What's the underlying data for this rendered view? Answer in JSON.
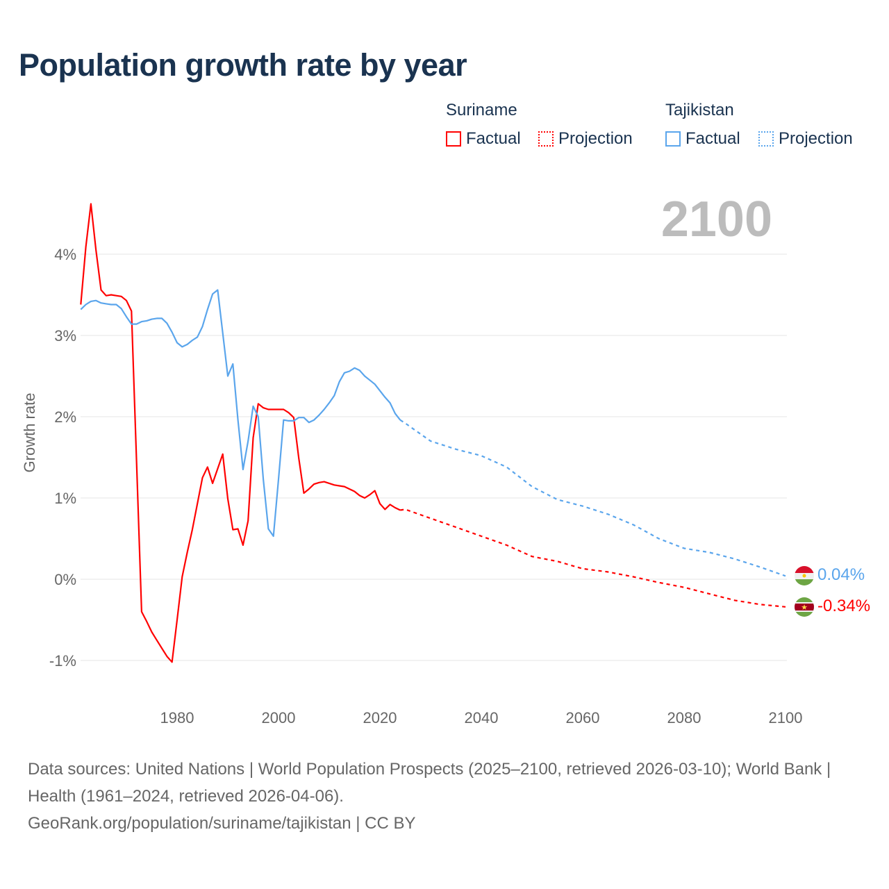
{
  "title": "Population growth rate by year",
  "current_year": "2100",
  "legend": {
    "groups": [
      {
        "country": "Suriname",
        "factual": "Factual",
        "projection": "Projection",
        "color": "#ff0000"
      },
      {
        "country": "Tajikistan",
        "factual": "Factual",
        "projection": "Projection",
        "color": "#5aa5ec"
      }
    ]
  },
  "end_labels": {
    "tajikistan": "0.04%",
    "suriname": "-0.34%"
  },
  "footer": {
    "sources": "Data sources: United Nations | World Population Prospects (2025–2100, retrieved 2026-03-10); World Bank | Health (1961–2024, retrieved 2026-04-06).",
    "credit": "GeoRank.org/population/suriname/tajikistan | CC BY"
  },
  "chart_data": {
    "type": "line",
    "title": "Population growth rate by year",
    "xlabel": "",
    "ylabel": "Growth rate",
    "xlim": [
      1961,
      2100
    ],
    "ylim": [
      -1.5,
      4.6
    ],
    "x_ticks": [
      1980,
      2000,
      2020,
      2040,
      2060,
      2080,
      2100
    ],
    "x_tick_labels": [
      "1980",
      "2000",
      "2020",
      "2040",
      "2060",
      "2080",
      "2100"
    ],
    "y_ticks": [
      -1,
      0,
      1,
      2,
      3,
      4
    ],
    "y_tick_labels": [
      "-1%",
      "0%",
      "1%",
      "2%",
      "3%",
      "4%"
    ],
    "grid": true,
    "legend_position": "top-right",
    "series": [
      {
        "name": "Suriname Factual",
        "color": "#ff0000",
        "style": "solid",
        "x": [
          1961,
          1962,
          1963,
          1964,
          1965,
          1966,
          1967,
          1968,
          1969,
          1970,
          1971,
          1972,
          1973,
          1974,
          1975,
          1976,
          1977,
          1978,
          1979,
          1980,
          1981,
          1982,
          1983,
          1984,
          1985,
          1986,
          1987,
          1988,
          1989,
          1990,
          1991,
          1992,
          1993,
          1994,
          1995,
          1996,
          1997,
          1998,
          1999,
          2000,
          2001,
          2002,
          2003,
          2004,
          2005,
          2006,
          2007,
          2008,
          2009,
          2010,
          2011,
          2012,
          2013,
          2014,
          2015,
          2016,
          2017,
          2018,
          2019,
          2020,
          2021,
          2022,
          2023,
          2024
        ],
        "y": [
          3.38,
          4.09,
          4.62,
          4.05,
          3.56,
          3.49,
          3.5,
          3.49,
          3.48,
          3.43,
          3.3,
          1.45,
          -0.4,
          -0.52,
          -0.65,
          -0.75,
          -0.85,
          -0.95,
          -1.02,
          -0.5,
          0.03,
          0.33,
          0.61,
          0.93,
          1.25,
          1.38,
          1.18,
          1.36,
          1.54,
          0.99,
          0.61,
          0.62,
          0.42,
          0.72,
          1.74,
          2.16,
          2.11,
          2.09,
          2.09,
          2.09,
          2.09,
          2.05,
          1.99,
          1.49,
          1.06,
          1.11,
          1.17,
          1.19,
          1.2,
          1.18,
          1.16,
          1.15,
          1.14,
          1.11,
          1.08,
          1.03,
          1.0,
          1.04,
          1.09,
          0.93,
          0.86,
          0.92,
          0.88,
          0.85
        ]
      },
      {
        "name": "Suriname Projection",
        "color": "#ff0000",
        "style": "dotted",
        "x": [
          2024,
          2025,
          2030,
          2035,
          2040,
          2045,
          2050,
          2055,
          2060,
          2065,
          2070,
          2075,
          2080,
          2085,
          2090,
          2095,
          2100
        ],
        "y": [
          0.85,
          0.86,
          0.75,
          0.64,
          0.53,
          0.42,
          0.28,
          0.22,
          0.13,
          0.09,
          0.03,
          -0.04,
          -0.1,
          -0.18,
          -0.26,
          -0.31,
          -0.34
        ]
      },
      {
        "name": "Tajikistan Factual",
        "color": "#5aa5ec",
        "style": "solid",
        "x": [
          1961,
          1962,
          1963,
          1964,
          1965,
          1966,
          1967,
          1968,
          1969,
          1970,
          1971,
          1972,
          1973,
          1974,
          1975,
          1976,
          1977,
          1978,
          1979,
          1980,
          1981,
          1982,
          1983,
          1984,
          1985,
          1986,
          1987,
          1988,
          1989,
          1990,
          1991,
          1992,
          1993,
          1994,
          1995,
          1996,
          1997,
          1998,
          1999,
          2000,
          2001,
          2002,
          2003,
          2004,
          2005,
          2006,
          2007,
          2008,
          2009,
          2010,
          2011,
          2012,
          2013,
          2014,
          2015,
          2016,
          2017,
          2018,
          2019,
          2020,
          2021,
          2022,
          2023,
          2024
        ],
        "y": [
          3.32,
          3.38,
          3.42,
          3.43,
          3.4,
          3.39,
          3.38,
          3.38,
          3.33,
          3.23,
          3.14,
          3.14,
          3.17,
          3.18,
          3.2,
          3.21,
          3.21,
          3.15,
          3.04,
          2.91,
          2.86,
          2.89,
          2.94,
          2.98,
          3.11,
          3.32,
          3.51,
          3.56,
          3.03,
          2.5,
          2.65,
          1.96,
          1.35,
          1.7,
          2.13,
          2.0,
          1.23,
          0.62,
          0.53,
          1.23,
          1.96,
          1.95,
          1.95,
          1.99,
          1.99,
          1.93,
          1.96,
          2.02,
          2.09,
          2.17,
          2.26,
          2.43,
          2.54,
          2.56,
          2.6,
          2.57,
          2.5,
          2.45,
          2.4,
          2.32,
          2.24,
          2.17,
          2.04,
          1.96
        ]
      },
      {
        "name": "Tajikistan Projection",
        "color": "#5aa5ec",
        "style": "dotted",
        "x": [
          2024,
          2025,
          2030,
          2035,
          2040,
          2045,
          2050,
          2055,
          2060,
          2065,
          2070,
          2075,
          2080,
          2085,
          2090,
          2095,
          2100
        ],
        "y": [
          1.96,
          1.92,
          1.7,
          1.6,
          1.52,
          1.38,
          1.14,
          0.98,
          0.9,
          0.8,
          0.67,
          0.5,
          0.38,
          0.33,
          0.25,
          0.15,
          0.04
        ]
      }
    ]
  }
}
